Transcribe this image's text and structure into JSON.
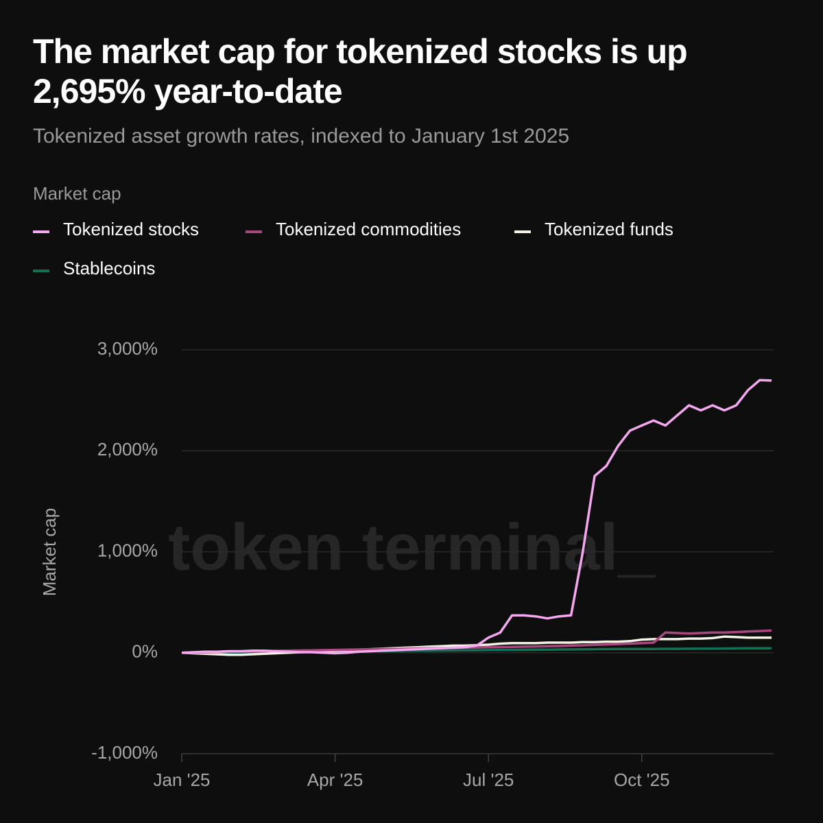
{
  "chart_data": {
    "type": "line",
    "title": "The market cap for tokenized stocks is up 2,695% year-to-date",
    "subtitle": "Tokenized asset growth rates, indexed to January 1st 2025",
    "legend_title": "Market cap",
    "y_label": "Market cap",
    "watermark": "token terminal_",
    "categories": [
      "Jan '25",
      null,
      null,
      null,
      null,
      null,
      null,
      null,
      null,
      null,
      null,
      null,
      null,
      "Apr '25",
      null,
      null,
      null,
      null,
      null,
      null,
      null,
      null,
      null,
      null,
      null,
      null,
      "Jul '25",
      null,
      null,
      null,
      null,
      null,
      null,
      null,
      null,
      null,
      null,
      null,
      null,
      "Oct '25",
      null,
      null,
      null,
      null,
      null,
      null,
      null,
      null,
      null,
      null,
      null
    ],
    "ylim": [
      -1000,
      3000
    ],
    "yticks": [
      {
        "value": -1000,
        "label": "-1,000%"
      },
      {
        "value": 0,
        "label": "0%"
      },
      {
        "value": 1000,
        "label": "1,000%"
      },
      {
        "value": 2000,
        "label": "2,000%"
      },
      {
        "value": 3000,
        "label": "3,000%"
      }
    ],
    "grid": true,
    "series": [
      {
        "name": "Tokenized stocks",
        "color": "#f5a8f0",
        "values": [
          0,
          5,
          10,
          10,
          15,
          15,
          20,
          20,
          15,
          10,
          5,
          5,
          0,
          -5,
          0,
          10,
          15,
          20,
          25,
          30,
          35,
          40,
          45,
          50,
          55,
          70,
          150,
          200,
          370,
          370,
          360,
          340,
          360,
          370,
          1000,
          1750,
          1850,
          2050,
          2200,
          2250,
          2300,
          2250,
          2350,
          2450,
          2400,
          2450,
          2400,
          2450,
          2600,
          2700,
          2695
        ]
      },
      {
        "name": "Tokenized commodities",
        "color": "#a8487f",
        "values": [
          0,
          2,
          5,
          7,
          10,
          12,
          14,
          16,
          18,
          20,
          22,
          24,
          26,
          28,
          30,
          32,
          34,
          36,
          38,
          40,
          42,
          44,
          46,
          48,
          50,
          52,
          54,
          56,
          58,
          60,
          62,
          64,
          66,
          70,
          74,
          78,
          82,
          86,
          90,
          95,
          100,
          200,
          195,
          190,
          195,
          200,
          200,
          205,
          210,
          215,
          220
        ]
      },
      {
        "name": "Tokenized funds",
        "color": "#f5f2e6",
        "values": [
          0,
          -5,
          -10,
          -15,
          -20,
          -20,
          -15,
          -10,
          -5,
          0,
          5,
          10,
          15,
          20,
          25,
          30,
          35,
          40,
          45,
          50,
          55,
          60,
          65,
          70,
          70,
          75,
          80,
          90,
          95,
          95,
          95,
          100,
          100,
          100,
          105,
          105,
          110,
          110,
          115,
          130,
          135,
          135,
          135,
          140,
          140,
          145,
          160,
          155,
          150,
          150,
          150
        ]
      },
      {
        "name": "Stablecoins",
        "color": "#137055",
        "values": [
          0,
          1,
          2,
          3,
          4,
          5,
          6,
          7,
          8,
          9,
          10,
          11,
          12,
          13,
          14,
          15,
          16,
          17,
          18,
          19,
          20,
          21,
          22,
          23,
          24,
          25,
          26,
          27,
          28,
          29,
          30,
          31,
          32,
          33,
          34,
          35,
          36,
          37,
          37,
          38,
          38,
          39,
          39,
          40,
          41,
          41,
          42,
          43,
          44,
          44,
          45
        ]
      }
    ]
  }
}
